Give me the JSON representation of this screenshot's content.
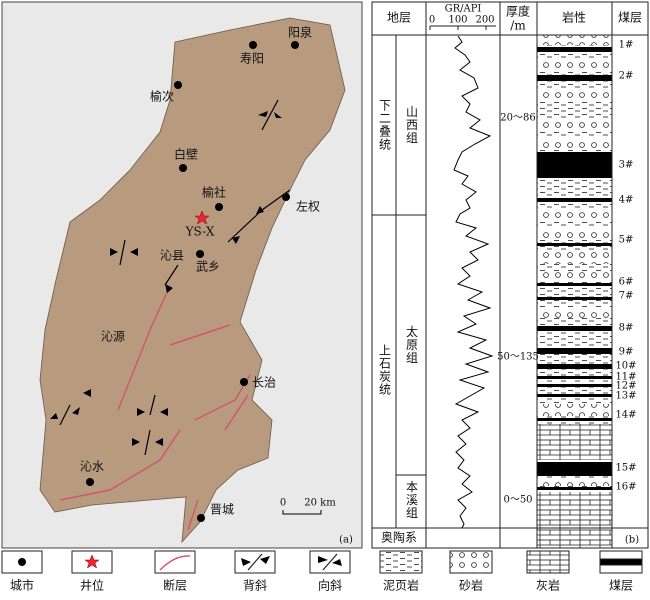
{
  "map": {
    "cities": [
      {
        "label": "阳泉"
      },
      {
        "label": "寿阳"
      },
      {
        "label": "榆次"
      },
      {
        "label": "白壁"
      },
      {
        "label": "榆社"
      },
      {
        "label": "左权"
      },
      {
        "label": "沁县"
      },
      {
        "label": "武乡"
      },
      {
        "label": "沁源"
      },
      {
        "label": "长治"
      },
      {
        "label": "沁水"
      },
      {
        "label": "晋城"
      }
    ],
    "well": "YS-X",
    "scale": {
      "zero": "0",
      "length": "20 km"
    },
    "panel_label": "(a)"
  },
  "column": {
    "headers": {
      "strata": "地层",
      "gr": "GR/API",
      "gr_ticks": [
        "0",
        "100",
        "200"
      ],
      "thickness": [
        "厚度",
        "/m"
      ],
      "lithology": "岩性",
      "coal": "煤层"
    },
    "series": [
      {
        "label": "下二叠统"
      },
      {
        "label": "上石炭统"
      }
    ],
    "formations": [
      {
        "label": "山西组"
      },
      {
        "label": "太原组"
      },
      {
        "label": "本溪组"
      }
    ],
    "base": "奥陶系",
    "thickness": [
      "20～86",
      "50～135",
      "0～50"
    ],
    "coal_seams": [
      "1#",
      "2#",
      "3#",
      "4#",
      "5#",
      "6#",
      "7#",
      "8#",
      "9#",
      "10#",
      "11#",
      "12#",
      "13#",
      "14#",
      "15#",
      "16#"
    ],
    "panel_label": "(b)"
  },
  "legend": [
    "城市",
    "井位",
    "断层",
    "背斜",
    "向斜",
    "泥页岩",
    "砂岩",
    "灰岩",
    "煤层"
  ]
}
